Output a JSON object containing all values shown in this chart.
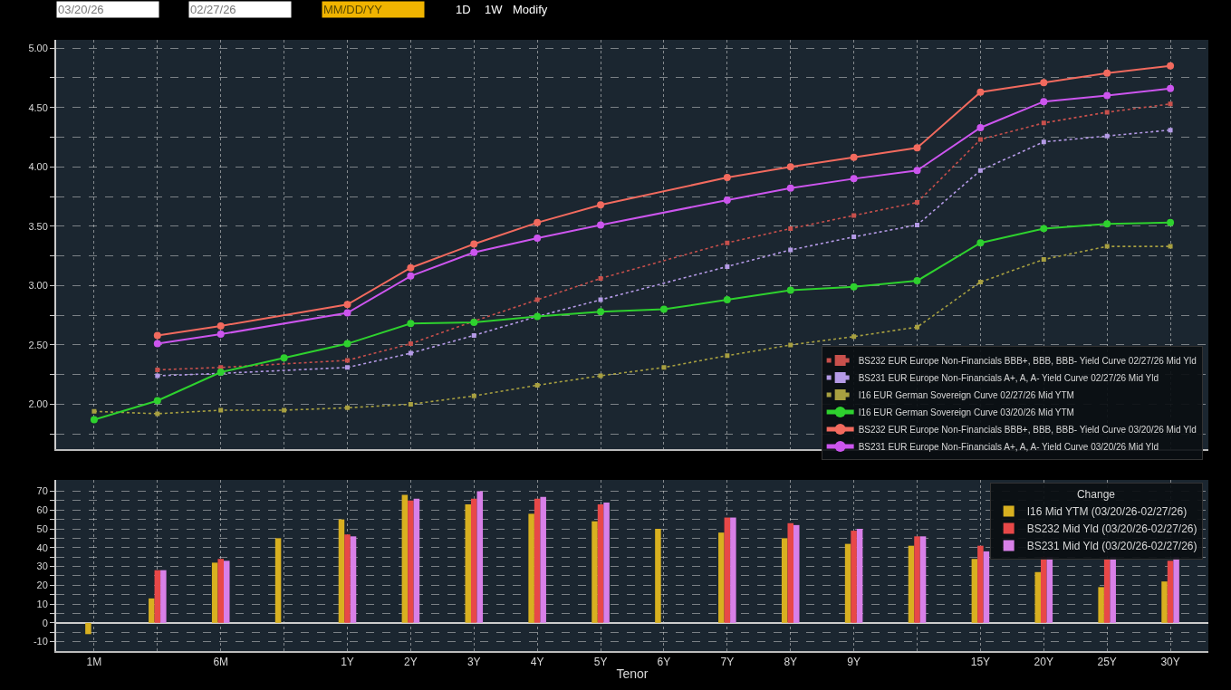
{
  "chart_data": [
    {
      "type": "line",
      "annotations": [
        "03/20/26",
        "02/27/26",
        "MM/DD/YY",
        "1D",
        "1W",
        "Modify"
      ],
      "series": [
        {
          "name": "BS232 EUR Europe Non-Financials BBB+, BBB, BBB- Yield Curve 02/27/26 Mid Yld",
          "color": "#c8504c",
          "line_style": "dotted",
          "marker": "square",
          "values": [
            null,
            2.29,
            2.31,
            null,
            2.37,
            2.51,
            2.7,
            2.88,
            3.06,
            null,
            3.36,
            3.48,
            3.59,
            3.7,
            4.23,
            4.37,
            4.46,
            4.53
          ]
        },
        {
          "name": "BS231 EUR Europe Non-Financials A+, A, A- Yield Curve 02/27/26 Mid Yld",
          "color": "#b49ae6",
          "line_style": "dotted",
          "marker": "square",
          "values": [
            null,
            2.24,
            2.26,
            null,
            2.31,
            2.43,
            2.58,
            2.74,
            2.88,
            null,
            3.16,
            3.3,
            3.41,
            3.51,
            3.97,
            4.21,
            4.26,
            4.31
          ]
        },
        {
          "name": "I16 EUR German Sovereign Curve 02/27/26 Mid YTM",
          "color": "#a8a040",
          "line_style": "dotted",
          "marker": "square",
          "values": [
            1.94,
            1.92,
            1.95,
            1.95,
            1.97,
            2.0,
            2.07,
            2.16,
            2.24,
            2.31,
            2.41,
            2.5,
            2.57,
            2.65,
            3.03,
            3.22,
            3.33,
            3.33
          ]
        },
        {
          "name": "I16 EUR German Sovereign Curve 03/20/26 Mid YTM",
          "color": "#2ed12e",
          "line_style": "solid",
          "marker": "circle",
          "values": [
            1.87,
            2.03,
            2.27,
            2.39,
            2.51,
            2.68,
            2.69,
            2.74,
            2.78,
            2.8,
            2.88,
            2.96,
            2.99,
            3.04,
            3.36,
            3.48,
            3.52,
            3.53
          ]
        },
        {
          "name": "BS232 EUR Europe Non-Financials BBB+, BBB, BBB- Yield Curve 03/20/26 Mid Yld",
          "color": "#f26a5e",
          "line_style": "solid",
          "marker": "circle",
          "values": [
            null,
            2.58,
            2.66,
            null,
            2.84,
            3.15,
            3.35,
            3.53,
            3.68,
            null,
            3.91,
            4.0,
            4.08,
            4.16,
            4.63,
            4.71,
            4.79,
            4.85
          ]
        },
        {
          "name": "BS231 EUR Europe Non-Financials A+, A, A- Yield Curve 03/20/26 Mid Yld",
          "color": "#cc55ee",
          "line_style": "solid",
          "marker": "circle",
          "values": [
            null,
            2.51,
            2.59,
            null,
            2.77,
            3.08,
            3.28,
            3.4,
            3.51,
            null,
            3.72,
            3.82,
            3.9,
            3.97,
            4.33,
            4.55,
            4.6,
            4.66
          ]
        }
      ],
      "ylim": [
        1.62,
        5.07
      ],
      "yticks": [
        {
          "value": 1.75,
          "label": null
        },
        {
          "value": 2,
          "label": "2.00"
        },
        {
          "value": 2.25,
          "label": null
        },
        {
          "value": 2.5,
          "label": "2.50"
        },
        {
          "value": 2.75,
          "label": null
        },
        {
          "value": 3,
          "label": "3.00"
        },
        {
          "value": 3.25,
          "label": null
        },
        {
          "value": 3.5,
          "label": "3.50"
        },
        {
          "value": 3.75,
          "label": null
        },
        {
          "value": 4,
          "label": "4.00"
        },
        {
          "value": 4.25,
          "label": null
        },
        {
          "value": 4.5,
          "label": "4.50"
        },
        {
          "value": 4.75,
          "label": null
        },
        {
          "value": 5,
          "label": "5.00"
        }
      ],
      "grid": true,
      "legend": "bottom right",
      "tick_labels": "y"
    },
    {
      "type": "bar",
      "categories": [
        "1M",
        null,
        "6M",
        null,
        "1Y",
        "2Y",
        "3Y",
        "4Y",
        "5Y",
        "6Y",
        "7Y",
        "8Y",
        "9Y",
        null,
        "15Y",
        "20Y",
        "25Y",
        "30Y"
      ],
      "xlabel": "Tenor",
      "legend_title": "Change",
      "series": [
        {
          "name": "I16 Mid YTM (03/20/26-02/27/26)",
          "color": "#d8b020",
          "values": [
            -6,
            13,
            32,
            45,
            55,
            68,
            63,
            58,
            54,
            50,
            48,
            45,
            42,
            41,
            34,
            27,
            19,
            22
          ]
        },
        {
          "name": "BS232 Mid Yld (03/20/26-02/27/26)",
          "color": "#e84848",
          "values": [
            null,
            28,
            34,
            null,
            47,
            65,
            66,
            66,
            63,
            null,
            56,
            53,
            49,
            46,
            41,
            35,
            34,
            33
          ]
        },
        {
          "name": "BS231 Mid Yld (03/20/26-02/27/26)",
          "color": "#d880e8",
          "values": [
            null,
            28,
            33,
            null,
            46,
            66,
            70,
            67,
            64,
            null,
            56,
            52,
            50,
            46,
            38,
            35,
            35,
            35
          ]
        }
      ],
      "ylim": [
        -15,
        76
      ],
      "yticks": [
        -10,
        {
          "value": -5,
          "label": null
        },
        0,
        {
          "value": 5,
          "label": null
        },
        10,
        {
          "value": 15,
          "label": null
        },
        20,
        {
          "value": 25,
          "label": null
        },
        30,
        {
          "value": 35,
          "label": null
        },
        40,
        {
          "value": 45,
          "label": null
        },
        50,
        {
          "value": 55,
          "label": null
        },
        60,
        {
          "value": 65,
          "label": null
        },
        70
      ],
      "grid": true,
      "legend": "top right"
    }
  ]
}
